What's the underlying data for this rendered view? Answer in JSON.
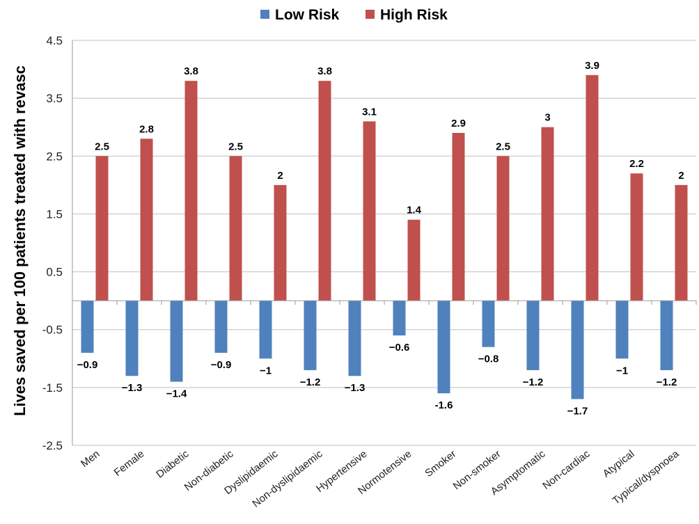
{
  "chart_data": {
    "type": "bar",
    "title": "",
    "xlabel": "",
    "ylabel": "Lives saved per 100 patients treated with revasc",
    "ylim": [
      -2.5,
      4.5
    ],
    "yticks": [
      "4.5",
      "3.5",
      "2.5",
      "1.5",
      "0.5",
      "-0.5",
      "-1.5",
      "-2.5"
    ],
    "ytick_values": [
      4.5,
      3.5,
      2.5,
      1.5,
      0.5,
      -0.5,
      -1.5,
      -2.5
    ],
    "grid": true,
    "legend_position": "top-center",
    "categories": [
      "Men",
      "Female",
      "Diabetic",
      "Non-diabetic",
      "Dyslipidaemic",
      "Non-dyslipidaemic",
      "Hypertensive",
      "Normotensive",
      "Smoker",
      "Non-smoker",
      "Asymptomatic",
      "Non-cardiac",
      "Atypical",
      "Typical/dyspnoea"
    ],
    "series": [
      {
        "name": "Low Risk",
        "color": "#4f81bd",
        "values": [
          -0.9,
          -1.3,
          -1.4,
          -0.9,
          -1,
          -1.2,
          -1.3,
          -0.6,
          -1.6,
          -0.8,
          -1.2,
          -1.7,
          -1,
          -1.2
        ],
        "labels": [
          "−0.9",
          "−1.3",
          "−1.4",
          "−0.9",
          "−1",
          "−1.2",
          "−1.3",
          "−0.6",
          "-1.6",
          "−0.8",
          "−1.2",
          "−1.7",
          "−1",
          "−1.2"
        ]
      },
      {
        "name": "High Risk",
        "color": "#c0504d",
        "values": [
          2.5,
          2.8,
          3.8,
          2.5,
          2,
          3.8,
          3.1,
          1.4,
          2.9,
          2.5,
          3,
          3.9,
          2.2,
          2
        ],
        "labels": [
          "2.5",
          "2.8",
          "3.8",
          "2.5",
          "2",
          "3.8",
          "3.1",
          "1.4",
          "2.9",
          "2.5",
          "3",
          "3.9",
          "2.2",
          "2"
        ]
      }
    ]
  }
}
